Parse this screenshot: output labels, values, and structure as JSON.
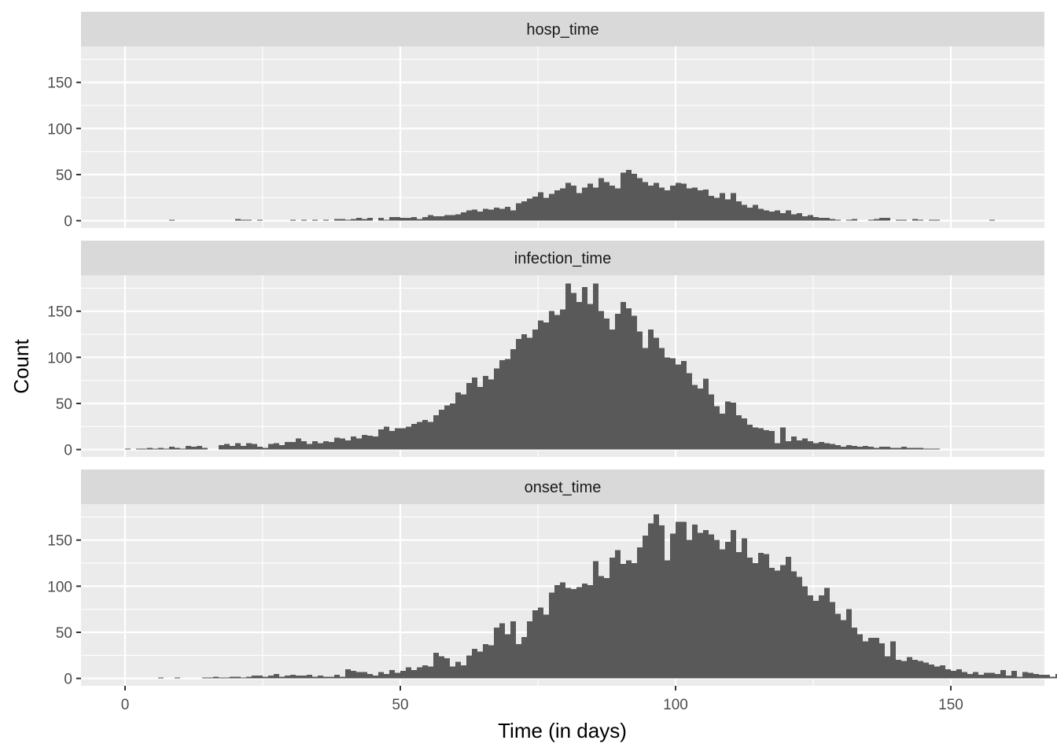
{
  "chart_data": {
    "type": "bar",
    "subtype": "faceted-histogram",
    "xlabel": "Time (in days)",
    "ylabel": "Count",
    "xlim": [
      -8,
      167
    ],
    "ylim": [
      -8,
      189
    ],
    "x_ticks": [
      0,
      50,
      100,
      150
    ],
    "y_ticks": [
      0,
      50,
      100,
      150
    ],
    "bin_start": 0,
    "bin_width": 1,
    "grid": true,
    "legend": "none",
    "colors": {
      "bar": "#595959",
      "panel_bg": "#ebebeb",
      "strip_bg": "#d9d9d9",
      "grid": "#ffffff",
      "tick": "#333333"
    },
    "panels": [
      {
        "name": "hosp_time",
        "values": [
          0,
          0,
          0,
          0,
          0,
          0,
          0,
          0,
          1,
          0,
          0,
          0,
          0,
          0,
          0,
          0,
          0,
          0,
          0,
          0,
          2,
          1,
          1,
          0,
          1,
          0,
          0,
          0,
          0,
          0,
          1,
          0,
          1,
          0,
          1,
          0,
          1,
          0,
          2,
          2,
          1,
          2,
          3,
          2,
          3,
          0,
          3,
          1,
          4,
          4,
          3,
          3,
          4,
          2,
          4,
          6,
          5,
          5,
          6,
          6,
          7,
          9,
          11,
          12,
          10,
          13,
          12,
          14,
          13,
          15,
          11,
          19,
          21,
          24,
          26,
          31,
          25,
          29,
          33,
          35,
          41,
          38,
          30,
          36,
          40,
          36,
          46,
          42,
          38,
          35,
          52,
          55,
          51,
          46,
          42,
          38,
          41,
          36,
          33,
          38,
          41,
          40,
          35,
          36,
          33,
          34,
          27,
          25,
          30,
          23,
          30,
          21,
          17,
          14,
          17,
          13,
          11,
          10,
          11,
          8,
          11,
          7,
          8,
          5,
          6,
          4,
          3,
          3,
          2,
          1,
          0,
          1,
          2,
          0,
          0,
          1,
          2,
          3,
          3,
          0,
          1,
          1,
          0,
          2,
          1,
          0,
          1,
          1,
          0,
          0,
          0,
          0,
          0,
          0,
          0,
          0,
          0,
          1,
          0,
          0
        ]
      },
      {
        "name": "infection_time",
        "values": [
          1,
          0,
          1,
          1,
          2,
          1,
          2,
          1,
          3,
          2,
          1,
          4,
          3,
          4,
          2,
          0,
          0,
          5,
          6,
          4,
          7,
          4,
          7,
          6,
          3,
          2,
          6,
          7,
          5,
          8,
          8,
          12,
          9,
          6,
          9,
          7,
          9,
          8,
          13,
          12,
          10,
          14,
          12,
          16,
          15,
          14,
          22,
          25,
          20,
          23,
          23,
          25,
          28,
          30,
          32,
          30,
          37,
          43,
          48,
          50,
          62,
          60,
          72,
          78,
          68,
          80,
          76,
          88,
          97,
          98,
          109,
          120,
          125,
          121,
          130,
          140,
          138,
          150,
          146,
          152,
          180,
          170,
          160,
          176,
          158,
          180,
          150,
          142,
          130,
          147,
          160,
          153,
          145,
          128,
          110,
          130,
          121,
          110,
          100,
          99,
          92,
          96,
          83,
          70,
          66,
          77,
          60,
          47,
          39,
          52,
          51,
          37,
          34,
          27,
          24,
          23,
          21,
          20,
          7,
          24,
          9,
          14,
          10,
          12,
          9,
          7,
          8,
          7,
          6,
          5,
          3,
          5,
          4,
          3,
          4,
          3,
          2,
          3,
          3,
          2,
          2,
          3,
          2,
          2,
          2,
          1,
          1,
          1
        ]
      },
      {
        "name": "onset_time",
        "values": [
          0,
          0,
          0,
          0,
          0,
          0,
          1,
          0,
          0,
          1,
          0,
          0,
          0,
          0,
          1,
          1,
          2,
          1,
          1,
          2,
          2,
          1,
          2,
          3,
          3,
          2,
          3,
          5,
          2,
          3,
          4,
          3,
          3,
          4,
          2,
          3,
          2,
          2,
          4,
          2,
          10,
          8,
          7,
          7,
          5,
          3,
          7,
          5,
          9,
          6,
          8,
          12,
          9,
          12,
          14,
          13,
          28,
          24,
          22,
          13,
          18,
          14,
          25,
          32,
          29,
          37,
          36,
          55,
          60,
          48,
          62,
          37,
          45,
          62,
          74,
          77,
          69,
          93,
          101,
          104,
          98,
          97,
          99,
          103,
          101,
          127,
          111,
          109,
          131,
          139,
          124,
          128,
          125,
          142,
          155,
          168,
          178,
          166,
          128,
          157,
          170,
          170,
          150,
          167,
          158,
          161,
          156,
          150,
          140,
          148,
          161,
          137,
          152,
          131,
          125,
          136,
          135,
          120,
          117,
          123,
          132,
          116,
          110,
          100,
          90,
          84,
          90,
          98,
          83,
          70,
          63,
          75,
          55,
          48,
          40,
          44,
          44,
          38,
          24,
          40,
          20,
          19,
          23,
          20,
          19,
          17,
          15,
          13,
          14,
          10,
          8,
          10,
          7,
          5,
          7,
          4,
          6,
          6,
          5,
          9,
          3,
          8,
          2,
          7,
          6,
          5,
          4,
          4,
          2,
          5,
          2,
          3,
          1,
          1
        ]
      }
    ]
  }
}
